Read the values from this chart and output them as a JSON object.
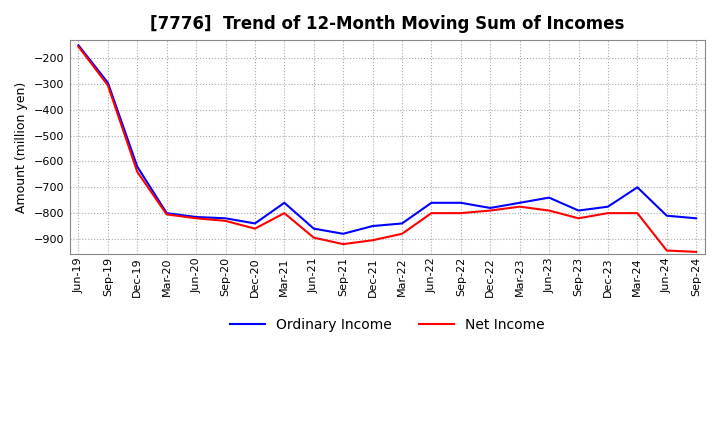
{
  "title": "[7776]  Trend of 12-Month Moving Sum of Incomes",
  "ylabel": "Amount (million yen)",
  "ylim": [
    -960,
    -130
  ],
  "yticks": [
    -900,
    -800,
    -700,
    -600,
    -500,
    -400,
    -300,
    -200
  ],
  "x_labels": [
    "Jun-19",
    "Sep-19",
    "Dec-19",
    "Mar-20",
    "Jun-20",
    "Sep-20",
    "Dec-20",
    "Mar-21",
    "Jun-21",
    "Sep-21",
    "Dec-21",
    "Mar-22",
    "Jun-22",
    "Sep-22",
    "Dec-22",
    "Mar-23",
    "Jun-23",
    "Sep-23",
    "Dec-23",
    "Mar-24",
    "Jun-24",
    "Sep-24"
  ],
  "ordinary_income": [
    -150,
    -295,
    -620,
    -800,
    -815,
    -820,
    -840,
    -760,
    -860,
    -880,
    -850,
    -840,
    -760,
    -760,
    -780,
    -760,
    -740,
    -790,
    -775,
    -700,
    -810,
    -820
  ],
  "net_income": [
    -155,
    -305,
    -640,
    -805,
    -820,
    -830,
    -860,
    -800,
    -895,
    -920,
    -905,
    -880,
    -800,
    -800,
    -790,
    -775,
    -790,
    -820,
    -800,
    -800,
    -945,
    -950
  ],
  "ordinary_color": "#0000ff",
  "net_color": "#ff0000",
  "grid_color": "#aaaaaa",
  "background_color": "#ffffff",
  "title_fontsize": 12,
  "axis_fontsize": 9,
  "tick_fontsize": 8,
  "legend_fontsize": 10
}
